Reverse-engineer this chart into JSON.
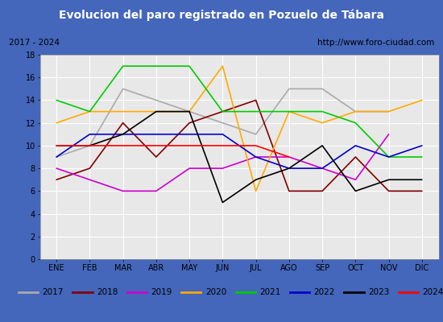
{
  "title": "Evolucion del paro registrado en Pozuelo de Tábara",
  "subtitle_left": "2017 - 2024",
  "subtitle_right": "http://www.foro-ciudad.com",
  "months": [
    "ENE",
    "FEB",
    "MAR",
    "ABR",
    "MAY",
    "JUN",
    "JUL",
    "AGO",
    "SEP",
    "OCT",
    "NOV",
    "DIC"
  ],
  "ylim": [
    0,
    18
  ],
  "yticks": [
    0,
    2,
    4,
    6,
    8,
    10,
    12,
    14,
    16,
    18
  ],
  "series": {
    "2017": {
      "color": "#aaaaaa",
      "data": [
        9,
        10,
        15,
        14,
        13,
        12,
        11,
        15,
        15,
        13,
        13,
        null
      ]
    },
    "2018": {
      "color": "#800000",
      "data": [
        7,
        8,
        12,
        9,
        12,
        13,
        14,
        6,
        6,
        9,
        6,
        6
      ]
    },
    "2019": {
      "color": "#cc00cc",
      "data": [
        8,
        7,
        6,
        6,
        8,
        8,
        9,
        9,
        8,
        7,
        11,
        null
      ]
    },
    "2020": {
      "color": "#ffaa00",
      "data": [
        12,
        13,
        13,
        13,
        13,
        17,
        6,
        13,
        12,
        13,
        13,
        14
      ]
    },
    "2021": {
      "color": "#00cc00",
      "data": [
        14,
        13,
        17,
        17,
        17,
        13,
        13,
        13,
        13,
        12,
        9,
        9
      ]
    },
    "2022": {
      "color": "#0000cc",
      "data": [
        9,
        11,
        11,
        11,
        11,
        11,
        9,
        8,
        8,
        10,
        9,
        10
      ]
    },
    "2023": {
      "color": "#000000",
      "data": [
        10,
        10,
        11,
        13,
        13,
        5,
        7,
        8,
        10,
        6,
        7,
        7
      ]
    },
    "2024": {
      "color": "#ff0000",
      "data": [
        10,
        10,
        10,
        10,
        10,
        10,
        10,
        9,
        null,
        null,
        null,
        null
      ]
    }
  },
  "title_bg": "#4466bb",
  "title_color": "#ffffff",
  "plot_bg": "#e8e8e8",
  "grid_color": "#ffffff",
  "legend_bg": "#d8d8d8",
  "outer_bg": "#4466bb",
  "subtitle_bg": "#f0f0f0",
  "border_color": "#4466bb"
}
